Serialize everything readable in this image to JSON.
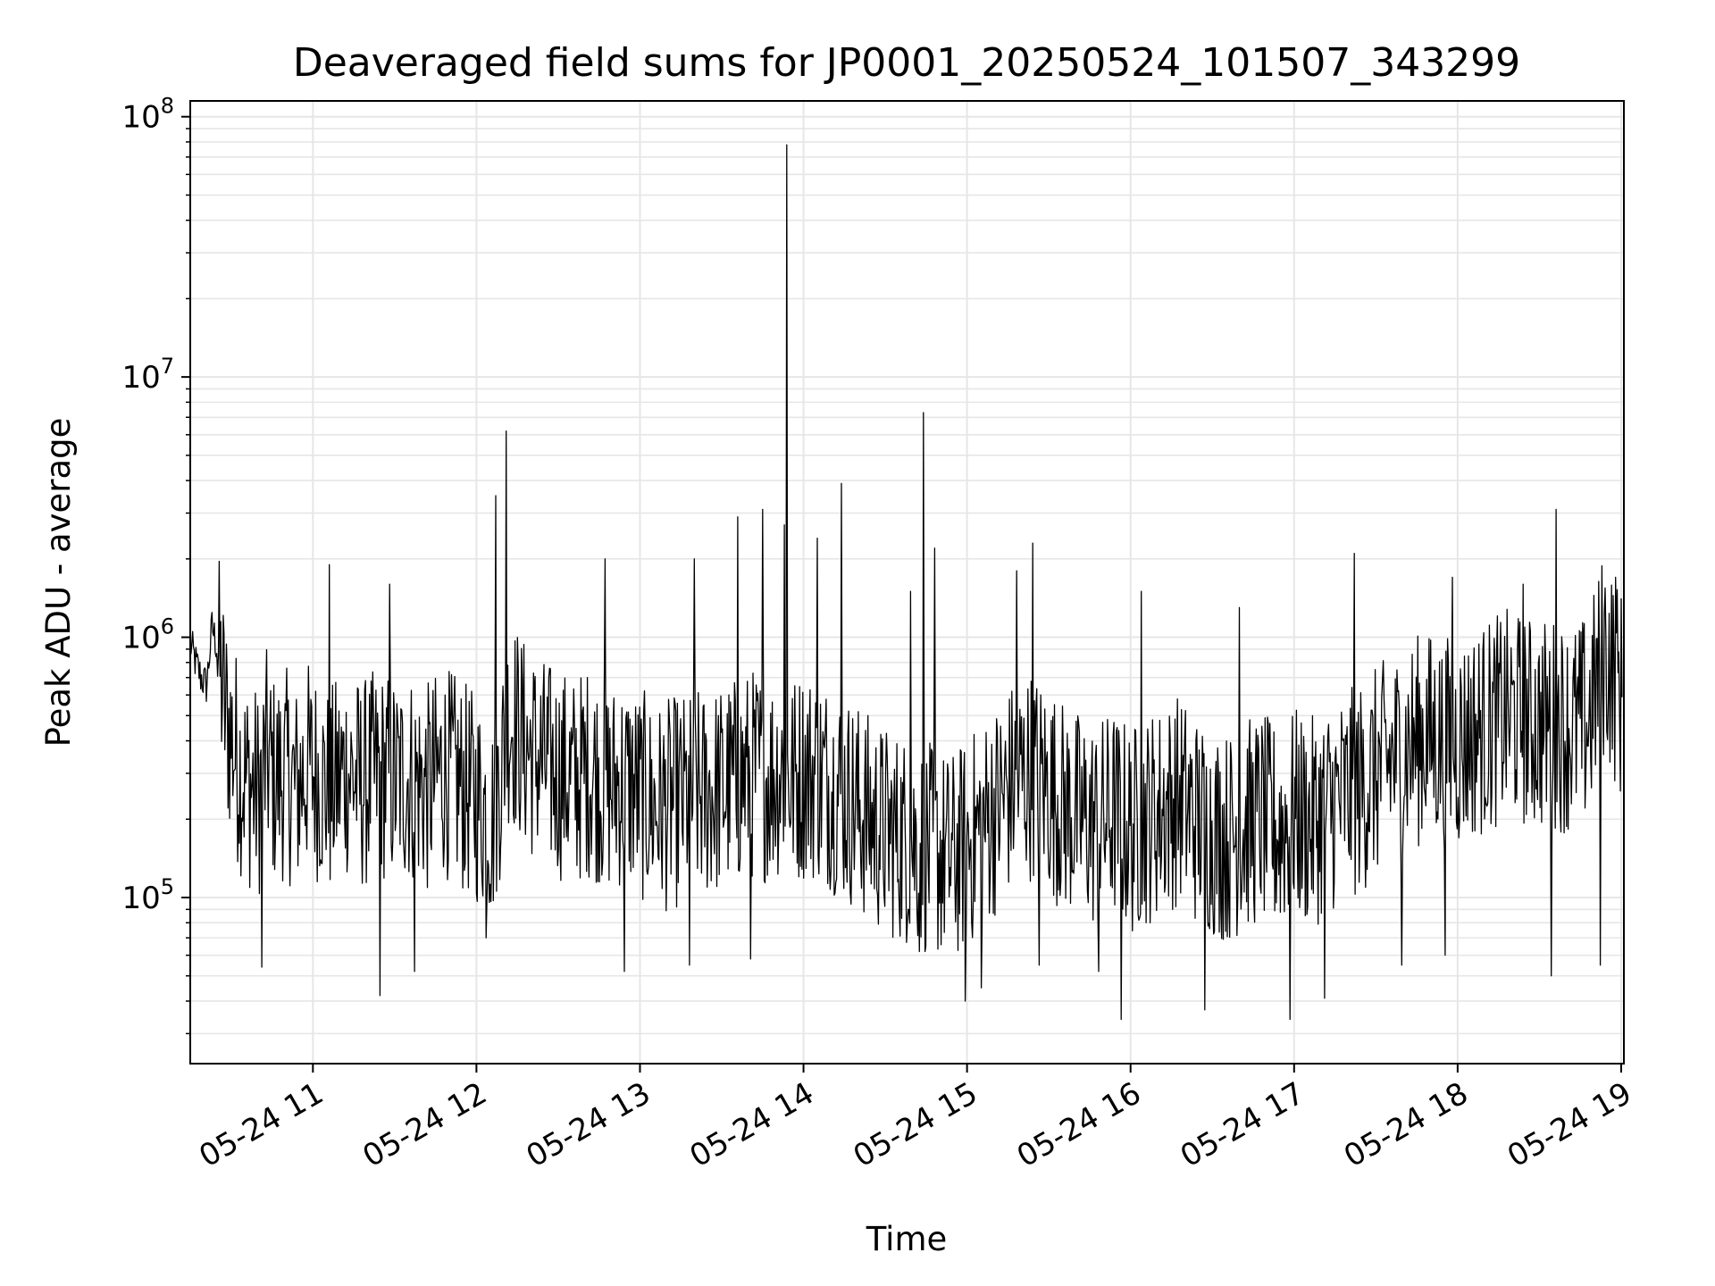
{
  "chart_data": {
    "type": "line",
    "title": "Deaveraged field sums for JP0001_20250524_101507_343299",
    "xlabel": "Time",
    "ylabel": "Peak ADU - average",
    "yscale": "log",
    "ylim": [
      23000,
      115000000
    ],
    "xlim": [
      "2025-05-24 10:15",
      "2025-05-24 19:01"
    ],
    "grid": true,
    "line_color": "#000000",
    "grid_color": "#e6e6e6",
    "x_ticks": [
      {
        "label": "05-24 11",
        "value": "2025-05-24 11:00"
      },
      {
        "label": "05-24 12",
        "value": "2025-05-24 12:00"
      },
      {
        "label": "05-24 13",
        "value": "2025-05-24 13:00"
      },
      {
        "label": "05-24 14",
        "value": "2025-05-24 14:00"
      },
      {
        "label": "05-24 15",
        "value": "2025-05-24 15:00"
      },
      {
        "label": "05-24 16",
        "value": "2025-05-24 16:00"
      },
      {
        "label": "05-24 17",
        "value": "2025-05-24 17:00"
      },
      {
        "label": "05-24 18",
        "value": "2025-05-24 18:00"
      },
      {
        "label": "05-24 19",
        "value": "2025-05-24 19:00"
      }
    ],
    "y_ticks": [
      {
        "base": "10",
        "exp": "5",
        "value": 100000
      },
      {
        "base": "10",
        "exp": "6",
        "value": 1000000
      },
      {
        "base": "10",
        "exp": "7",
        "value": 10000000
      },
      {
        "base": "10",
        "exp": "8",
        "value": 100000000
      }
    ],
    "series": [
      {
        "x": [
          "2025-05-24 10:15",
          "2025-05-24 10:17",
          "2025-05-24 10:19",
          "2025-05-24 10:21",
          "2025-05-24 10:23",
          "2025-05-24 10:25",
          "2025-05-24 10:28",
          "2025-05-24 10:31",
          "2025-05-24 10:34",
          "2025-05-24 10:37",
          "2025-05-24 10:40",
          "2025-05-24 10:43",
          "2025-05-24 10:46",
          "2025-05-24 10:50",
          "2025-05-24 10:54",
          "2025-05-24 10:58",
          "2025-05-24 11:02",
          "2025-05-24 11:06",
          "2025-05-24 11:12",
          "2025-05-24 11:18",
          "2025-05-24 11:24",
          "2025-05-24 11:30",
          "2025-05-24 11:36",
          "2025-05-24 11:42",
          "2025-05-24 11:48",
          "2025-05-24 11:54",
          "2025-05-24 12:00",
          "2025-05-24 12:06",
          "2025-05-24 12:12",
          "2025-05-24 12:18",
          "2025-05-24 12:24",
          "2025-05-24 12:30",
          "2025-05-24 12:36",
          "2025-05-24 12:42",
          "2025-05-24 12:48",
          "2025-05-24 12:54",
          "2025-05-24 13:00",
          "2025-05-24 13:06",
          "2025-05-24 13:12",
          "2025-05-24 13:18",
          "2025-05-24 13:24",
          "2025-05-24 13:30",
          "2025-05-24 13:36",
          "2025-05-24 13:42",
          "2025-05-24 13:48",
          "2025-05-24 13:52",
          "2025-05-24 13:56",
          "2025-05-24 14:00",
          "2025-05-24 14:06",
          "2025-05-24 14:12",
          "2025-05-24 14:18",
          "2025-05-24 14:24",
          "2025-05-24 14:30",
          "2025-05-24 14:36",
          "2025-05-24 14:42",
          "2025-05-24 14:48",
          "2025-05-24 14:54",
          "2025-05-24 15:00",
          "2025-05-24 15:06",
          "2025-05-24 15:12",
          "2025-05-24 15:18",
          "2025-05-24 15:24",
          "2025-05-24 15:30",
          "2025-05-24 15:36",
          "2025-05-24 15:42",
          "2025-05-24 15:48",
          "2025-05-24 15:54",
          "2025-05-24 16:00",
          "2025-05-24 16:06",
          "2025-05-24 16:12",
          "2025-05-24 16:18",
          "2025-05-24 16:24",
          "2025-05-24 16:30",
          "2025-05-24 16:36",
          "2025-05-24 16:42",
          "2025-05-24 16:48",
          "2025-05-24 16:54",
          "2025-05-24 17:00",
          "2025-05-24 17:06",
          "2025-05-24 17:12",
          "2025-05-24 17:18",
          "2025-05-24 17:24",
          "2025-05-24 17:30",
          "2025-05-24 17:36",
          "2025-05-24 17:42",
          "2025-05-24 17:48",
          "2025-05-24 17:54",
          "2025-05-24 18:00",
          "2025-05-24 18:06",
          "2025-05-24 18:12",
          "2025-05-24 18:18",
          "2025-05-24 18:24",
          "2025-05-24 18:30",
          "2025-05-24 18:36",
          "2025-05-24 18:42",
          "2025-05-24 18:48",
          "2025-05-24 18:54",
          "2025-05-24 19:00"
        ],
        "y": [
          950000,
          800000,
          700000,
          650000,
          1100000,
          900000,
          500000,
          380000,
          300000,
          270000,
          250000,
          350000,
          280000,
          300000,
          260000,
          320000,
          290000,
          250000,
          310000,
          270000,
          300000,
          280000,
          290000,
          260000,
          310000,
          270000,
          240000,
          200000,
          500000,
          380000,
          330000,
          300000,
          280000,
          310000,
          260000,
          280000,
          250000,
          220000,
          230000,
          240000,
          250000,
          260000,
          280000,
          300000,
          290000,
          310000,
          280000,
          300000,
          290000,
          260000,
          230000,
          200000,
          180000,
          170000,
          160000,
          150000,
          140000,
          160000,
          190000,
          230000,
          280000,
          300000,
          260000,
          220000,
          200000,
          190000,
          210000,
          180000,
          200000,
          220000,
          240000,
          200000,
          180000,
          170000,
          190000,
          200000,
          180000,
          210000,
          190000,
          220000,
          240000,
          260000,
          300000,
          340000,
          380000,
          420000,
          400000,
          390000,
          430000,
          460000,
          500000,
          480000,
          460000,
          470000,
          440000,
          480000,
          900000,
          600000
        ]
      }
    ],
    "peaks": [
      {
        "x": "2025-05-24 11:06",
        "y": 1900000
      },
      {
        "x": "2025-05-24 11:28",
        "y": 1600000
      },
      {
        "x": "2025-05-24 12:07",
        "y": 3500000
      },
      {
        "x": "2025-05-24 12:11",
        "y": 6200000
      },
      {
        "x": "2025-05-24 12:47",
        "y": 2000000
      },
      {
        "x": "2025-05-24 13:20",
        "y": 2000000
      },
      {
        "x": "2025-05-24 13:36",
        "y": 2900000
      },
      {
        "x": "2025-05-24 13:45",
        "y": 3100000
      },
      {
        "x": "2025-05-24 13:53",
        "y": 2700000
      },
      {
        "x": "2025-05-24 13:54",
        "y": 78000000
      },
      {
        "x": "2025-05-24 14:05",
        "y": 2400000
      },
      {
        "x": "2025-05-24 14:14",
        "y": 3900000
      },
      {
        "x": "2025-05-24 14:39",
        "y": 1500000
      },
      {
        "x": "2025-05-24 14:44",
        "y": 7300000
      },
      {
        "x": "2025-05-24 14:48",
        "y": 2200000
      },
      {
        "x": "2025-05-24 15:18",
        "y": 1800000
      },
      {
        "x": "2025-05-24 15:24",
        "y": 2300000
      },
      {
        "x": "2025-05-24 16:04",
        "y": 1500000
      },
      {
        "x": "2025-05-24 16:40",
        "y": 1300000
      },
      {
        "x": "2025-05-24 17:22",
        "y": 2100000
      },
      {
        "x": "2025-05-24 17:58",
        "y": 1700000
      },
      {
        "x": "2025-05-24 18:24",
        "y": 1600000
      },
      {
        "x": "2025-05-24 18:36",
        "y": 3100000
      },
      {
        "x": "2025-05-24 18:58",
        "y": 1700000
      }
    ],
    "dips": [
      {
        "x": "2025-05-24 10:41",
        "y": 54000
      },
      {
        "x": "2025-05-24 11:24",
        "y": 42000
      },
      {
        "x": "2025-05-24 11:37",
        "y": 52000
      },
      {
        "x": "2025-05-24 12:03",
        "y": 70000
      },
      {
        "x": "2025-05-24 12:54",
        "y": 52000
      },
      {
        "x": "2025-05-24 13:18",
        "y": 55000
      },
      {
        "x": "2025-05-24 13:40",
        "y": 58000
      },
      {
        "x": "2025-05-24 14:42",
        "y": 62000
      },
      {
        "x": "2025-05-24 14:59",
        "y": 40000
      },
      {
        "x": "2025-05-24 15:05",
        "y": 45000
      },
      {
        "x": "2025-05-24 15:26",
        "y": 55000
      },
      {
        "x": "2025-05-24 15:48",
        "y": 52000
      },
      {
        "x": "2025-05-24 15:56",
        "y": 34000
      },
      {
        "x": "2025-05-24 16:27",
        "y": 37000
      },
      {
        "x": "2025-05-24 16:58",
        "y": 34000
      },
      {
        "x": "2025-05-24 17:11",
        "y": 41000
      },
      {
        "x": "2025-05-24 17:39",
        "y": 55000
      },
      {
        "x": "2025-05-24 17:55",
        "y": 60000
      },
      {
        "x": "2025-05-24 18:34",
        "y": 50000
      },
      {
        "x": "2025-05-24 18:52",
        "y": 55000
      }
    ]
  }
}
